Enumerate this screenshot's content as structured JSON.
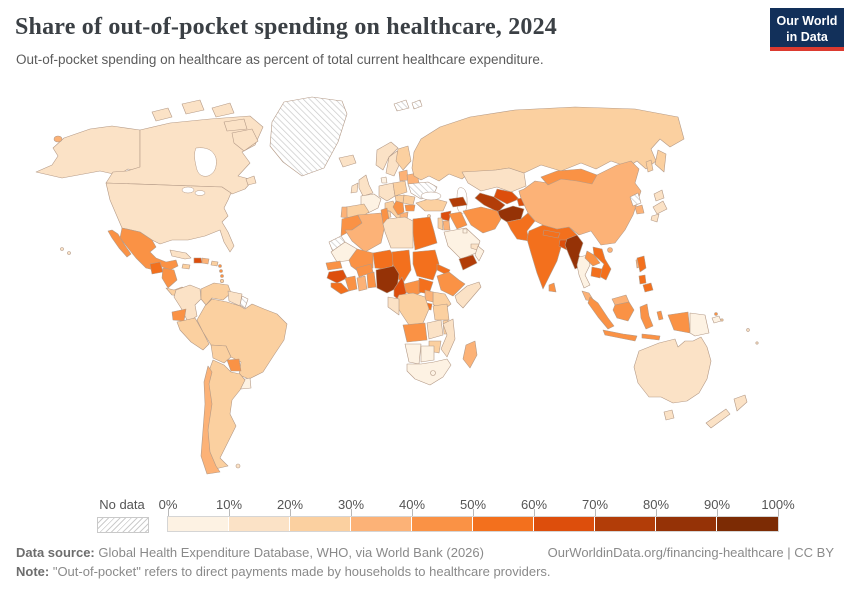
{
  "header": {
    "title": "Share of out-of-pocket spending on healthcare, 2024",
    "subtitle": "Out-of-pocket spending on healthcare as percent of total current healthcare expenditure.",
    "logo_line1": "Our World",
    "logo_line2": "in Data",
    "logo_bg": "#12305a",
    "logo_accent": "#dc3a2f"
  },
  "legend": {
    "no_data_label": "No data",
    "tick_labels": [
      "0%",
      "10%",
      "20%",
      "30%",
      "40%",
      "50%",
      "60%",
      "70%",
      "80%",
      "90%",
      "100%"
    ]
  },
  "palette": [
    "#fdf2e3",
    "#fbe2c6",
    "#fbd0a0",
    "#fcb277",
    "#fa9245",
    "#f3701d",
    "#dd4e0c",
    "#b23d08",
    "#953206",
    "#7c2b04"
  ],
  "map": {
    "border_color": "#b49a87",
    "no_data_value": 0,
    "regions": {
      "alaska": 2,
      "alaska-patch": 4,
      "canada": 2,
      "arctic-island-1": 2,
      "arctic-island-2": 2,
      "arctic-island-3": 2,
      "arctic-island-4": 2,
      "baffin-island": 2,
      "newfoundland": 2,
      "greenland": 0,
      "svalbard": 0,
      "svalbard-2": 0,
      "iceland": 2,
      "usa": 2,
      "hawaii-1": 2,
      "hawaii-2": 2,
      "mexico": 5,
      "baja": 5,
      "guatemala": 6,
      "honduras-nicaragua": 5,
      "costa-panama": 3,
      "cuba": 2,
      "jamaica": 3,
      "haiti": 7,
      "dominican-republic": 4,
      "puerto-rico": 3,
      "antilles-1": 5,
      "antilles-2": 5,
      "antilles-3": 5,
      "trinidad": 3,
      "colombia": 2,
      "venezuela": 3,
      "guyana-suriname": 2,
      "french-guiana": 0,
      "ecuador": 5,
      "peru": 3,
      "brazil": 3,
      "bolivia": 3,
      "paraguay": 5,
      "uruguay": 1,
      "argentina": 3,
      "chile": 4,
      "falkland": 2,
      "norway": 2,
      "sweden": 2,
      "finland": 3,
      "denmark": 1,
      "uk": 2,
      "ireland": 2,
      "france": 1,
      "spain": 3,
      "portugal": 4,
      "germany-central": 2,
      "italy": 3,
      "sardinia": 3,
      "sicily": 3,
      "poland": 3,
      "baltics": 4,
      "belarus": 4,
      "ukraine": 0,
      "romania": 3,
      "hungary-slovakia": 3,
      "balkans-serbia": 5,
      "greece": 4,
      "bulgaria": 5,
      "russia": 3,
      "kamchatka": 3,
      "sakhalin": 3,
      "kazakhstan": 2,
      "uzbekistan": 7,
      "turkmenistan": 8,
      "kyrgyzstan": 6,
      "tajikistan": 7,
      "afghanistan": 9,
      "pakistan": 6,
      "india": 6,
      "nepal": 6,
      "bangladesh": 7,
      "sri-lanka": 5,
      "china": 4,
      "hainan": 4,
      "mongolia": 5,
      "north-korea": 0,
      "south-korea": 4,
      "japan-hokkaido": 2,
      "japan-honshu": 2,
      "japan-kyushu": 2,
      "taiwan": 4,
      "myanmar": 9,
      "thailand": 1,
      "laos": 5,
      "vietnam": 6,
      "cambodia": 6,
      "malaysia": 4,
      "malaysia-borneo": 4,
      "philippines-luzon": 6,
      "philippines-visayas": 6,
      "philippines-mindanao": 6,
      "sumatra": 5,
      "java": 5,
      "borneo-indonesia": 5,
      "sulawesi": 5,
      "lesser-sunda": 5,
      "moluccas": 5,
      "papua-indonesia": 5,
      "png": 1,
      "new-britain": 1,
      "solomon-1": 5,
      "solomon-2": 3,
      "fiji-1": 2,
      "fiji-2": 2,
      "australia": 2,
      "tasmania": 2,
      "nz-north": 2,
      "nz-south": 2,
      "turkey": 3,
      "cyprus": 3,
      "syria": 7,
      "lebanon-israel": 3,
      "jordan": 4,
      "iraq": 5,
      "saudi-arabia": 1,
      "yemen": 8,
      "oman": 1,
      "uae-qatar": 2,
      "kuwait": 1,
      "iran": 5,
      "caucasus": 8,
      "morocco": 5,
      "western-sahara": 0,
      "algeria": 4,
      "tunisia": 5,
      "libya": 2,
      "egypt": 6,
      "mauritania": 1,
      "mali": 5,
      "niger": 6,
      "chad": 6,
      "sudan": 6,
      "eritrea": 6,
      "senegal": 5,
      "guinea": 7,
      "sierra-liberia": 6,
      "cote-divoire": 5,
      "ghana": 4,
      "togo-benin": 5,
      "burkina": 5,
      "nigeria": 9,
      "cameroon": 7,
      "car": 5,
      "south-sudan": 6,
      "ethiopia": 5,
      "somalia": 2,
      "kenya": 3,
      "uganda": 4,
      "rwanda-burundi": 6,
      "drc": 3,
      "congo-gabon": 2,
      "tanzania": 3,
      "angola": 5,
      "zambia": 2,
      "malawi": 3,
      "mozambique": 2,
      "zimbabwe": 3,
      "namibia": 1,
      "botswana": 1,
      "south-africa": 1,
      "lesotho": 1,
      "madagascar": 4
    }
  },
  "footer": {
    "source_label": "Data source:",
    "source_text": " Global Health Expenditure Database, WHO, via World Bank (2026)",
    "link_text": "OurWorldinData.org/financing-healthcare | CC BY",
    "note_label": "Note:",
    "note_text": " \"Out-of-pocket\" refers to direct payments made by households to healthcare providers."
  }
}
